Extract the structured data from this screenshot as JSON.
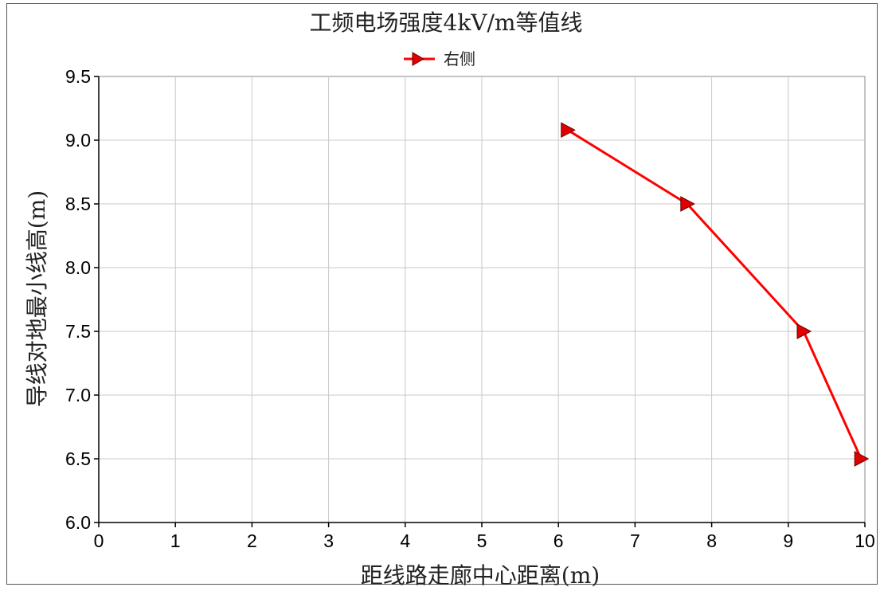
{
  "chart_data": {
    "type": "line",
    "title": "工频电场强度4kV/m等值线",
    "xlabel": "距线路走廊中心距离(m)",
    "ylabel": "导线对地最小线高(m)",
    "xlim": [
      0,
      10
    ],
    "ylim": [
      6.0,
      9.5
    ],
    "x_ticks": [
      "0",
      "1",
      "2",
      "3",
      "4",
      "5",
      "6",
      "7",
      "8",
      "9",
      "10"
    ],
    "y_ticks": [
      "6.0",
      "6.5",
      "7.0",
      "7.5",
      "8.0",
      "8.5",
      "9.0",
      "9.5"
    ],
    "grid": true,
    "legend_position": "top-center",
    "series": [
      {
        "name": "右侧",
        "color": "#ff0000",
        "marker": "triangle-right",
        "marker_fill": "#e00000",
        "points": [
          {
            "x": 6.12,
            "y": 9.08
          },
          {
            "x": 7.68,
            "y": 8.5
          },
          {
            "x": 9.2,
            "y": 7.5
          },
          {
            "x": 9.95,
            "y": 6.5
          }
        ]
      }
    ]
  }
}
